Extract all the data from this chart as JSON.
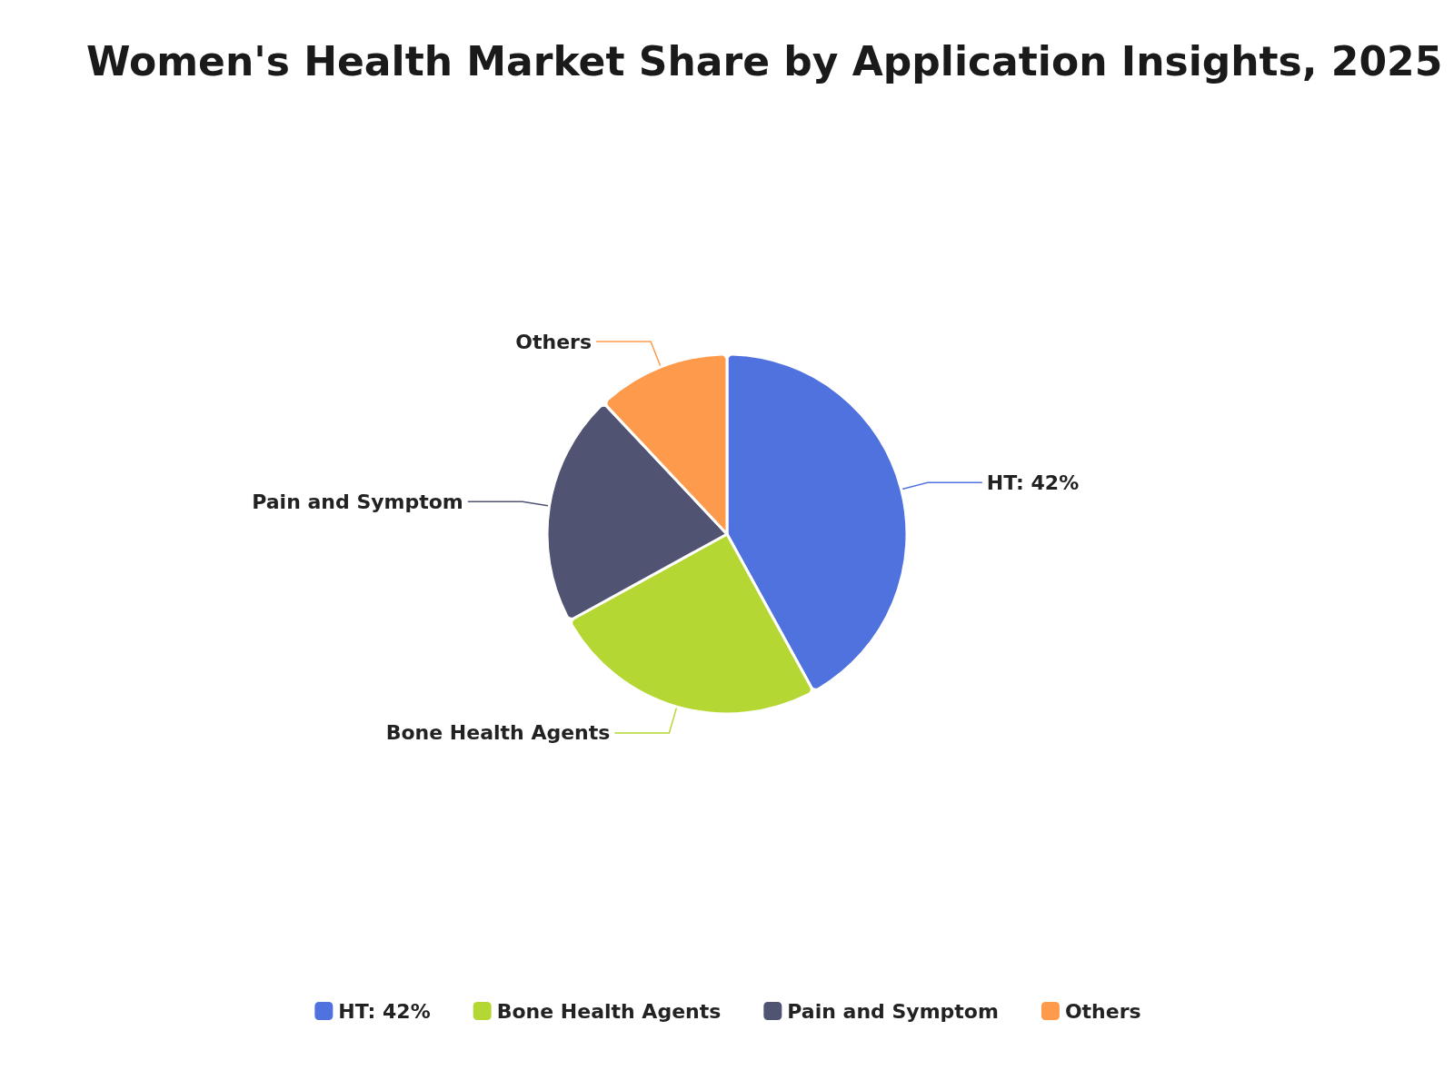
{
  "chart_data": {
    "type": "pie",
    "title": "Women's Health Market Share by Application Insights, 2025",
    "categories": [
      "HT: 42%",
      "Bone Health Agents",
      "Pain and Symptom",
      "Others"
    ],
    "values": [
      42,
      25,
      21,
      12
    ],
    "colors": [
      "#5072de",
      "#b5d733",
      "#515372",
      "#fe9a4c"
    ],
    "legend": "bottom"
  }
}
